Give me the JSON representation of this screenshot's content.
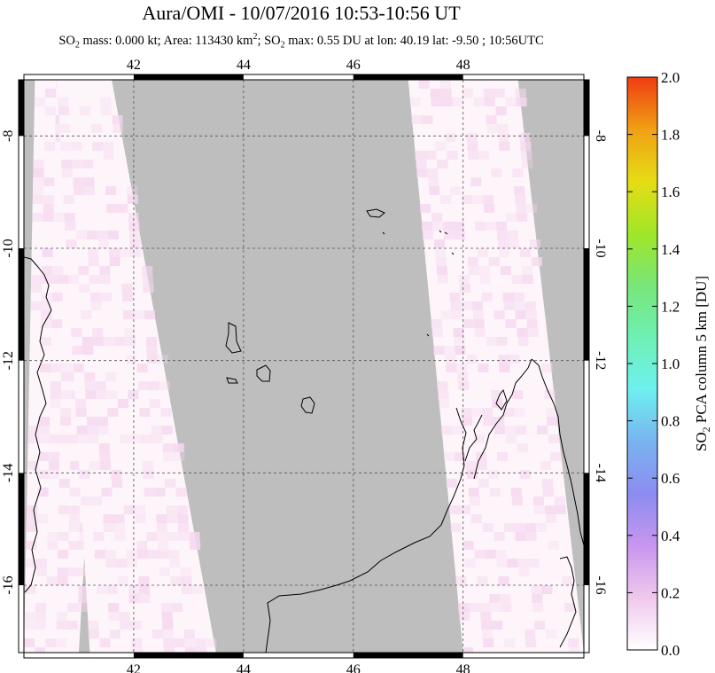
{
  "title": "Aura/OMI - 10/07/2016 10:53-10:56 UT",
  "subtitle": {
    "part1": "SO",
    "sub1": "2",
    "part2": " mass: 0.000 kt; Area: 113430 km",
    "sup1": "2",
    "part3": "; SO",
    "sub2": "2",
    "part4": " max: 0.55 DU at lon: 40.19 lat: -9.50 ; 10:56UTC"
  },
  "colors": {
    "background_gray": "#bebebe",
    "swath_white": "#fdf5fa",
    "swath_pink": "#f5d8ef",
    "coast": "#000000"
  },
  "chart_data": {
    "type": "heatmap",
    "title": "Aura/OMI - 10/07/2016 10:53-10:56 UT",
    "xlim": [
      40,
      50.2
    ],
    "ylim": [
      -17.2,
      -7
    ],
    "x_ticks": [
      42,
      44,
      46,
      48
    ],
    "x_tick_labels": [
      "42",
      "44",
      "46",
      "48"
    ],
    "y_ticks": [
      -8,
      -10,
      -12,
      -14,
      -16
    ],
    "y_tick_labels": [
      "-8",
      "-10",
      "-12",
      "-14",
      "-16"
    ],
    "grid": true,
    "colorbar": {
      "label_pre": "SO",
      "label_sub": "2",
      "label_post": " PCA column 5 km [DU]",
      "min": 0.0,
      "max": 2.0,
      "ticks": [
        "0.0",
        "0.2",
        "0.4",
        "0.6",
        "0.8",
        "1.0",
        "1.2",
        "1.4",
        "1.6",
        "1.8",
        "2.0"
      ],
      "stops": [
        "#ffffff",
        "#f0c8ec",
        "#c896f0",
        "#8c8cf0",
        "#78b4f0",
        "#6ef0f0",
        "#6ef0b4",
        "#78e678",
        "#a0e628",
        "#e6dc14",
        "#f0a014",
        "#f03c14"
      ]
    },
    "swaths_approx_lon": [
      {
        "name": "",
        "lon_range_top": [
          40.2,
          41.6
        ],
        "lon_range_bottom": [
          40.0,
          41.0
        ]
      },
      {
        "name": "",
        "lon_range_top": [
          40.6,
          41.6
        ],
        "lon_range_bottom": [
          41.2,
          43.5
        ]
      },
      {
        "name": "",
        "lon_range_top": [
          47.0,
          49.0
        ],
        "lon_range_bottom": [
          48.0,
          50.2
        ]
      }
    ],
    "max_value": 0.55,
    "max_lon": 40.19,
    "max_lat": -9.5
  }
}
